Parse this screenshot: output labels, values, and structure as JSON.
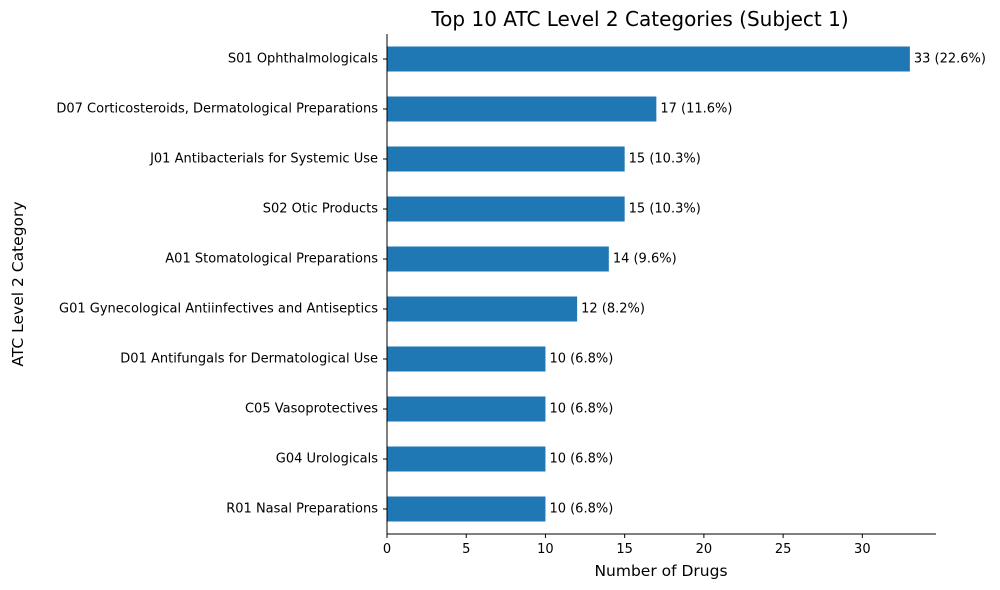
{
  "chart_data": {
    "type": "bar",
    "orientation": "horizontal",
    "title": "Top 10 ATC Level 2 Categories (Subject 1)",
    "xlabel": "Number of Drugs",
    "ylabel": "ATC Level 2 Category",
    "xlim": [
      0,
      34.65
    ],
    "xticks": [
      0,
      5,
      10,
      15,
      20,
      25,
      30
    ],
    "grid": false,
    "bar_color": "#1f77b4",
    "categories": [
      "S01 Ophthalmologicals",
      "D07 Corticosteroids, Dermatological Preparations",
      "J01 Antibacterials for Systemic Use",
      "S02 Otic Products",
      "A01 Stomatological Preparations",
      "G01 Gynecological Antiinfectives and Antiseptics",
      "D01 Antifungals for Dermatological Use",
      "C05 Vasoprotectives",
      "G04 Urologicals",
      "R01 Nasal Preparations"
    ],
    "values": [
      33,
      17,
      15,
      15,
      14,
      12,
      10,
      10,
      10,
      10
    ],
    "value_labels": [
      "33 (22.6%)",
      "17 (11.6%)",
      "15 (10.3%)",
      "15 (10.3%)",
      "14 (9.6%)",
      "12 (8.2%)",
      "10 (6.8%)",
      "10 (6.8%)",
      "10 (6.8%)",
      "10 (6.8%)"
    ]
  }
}
